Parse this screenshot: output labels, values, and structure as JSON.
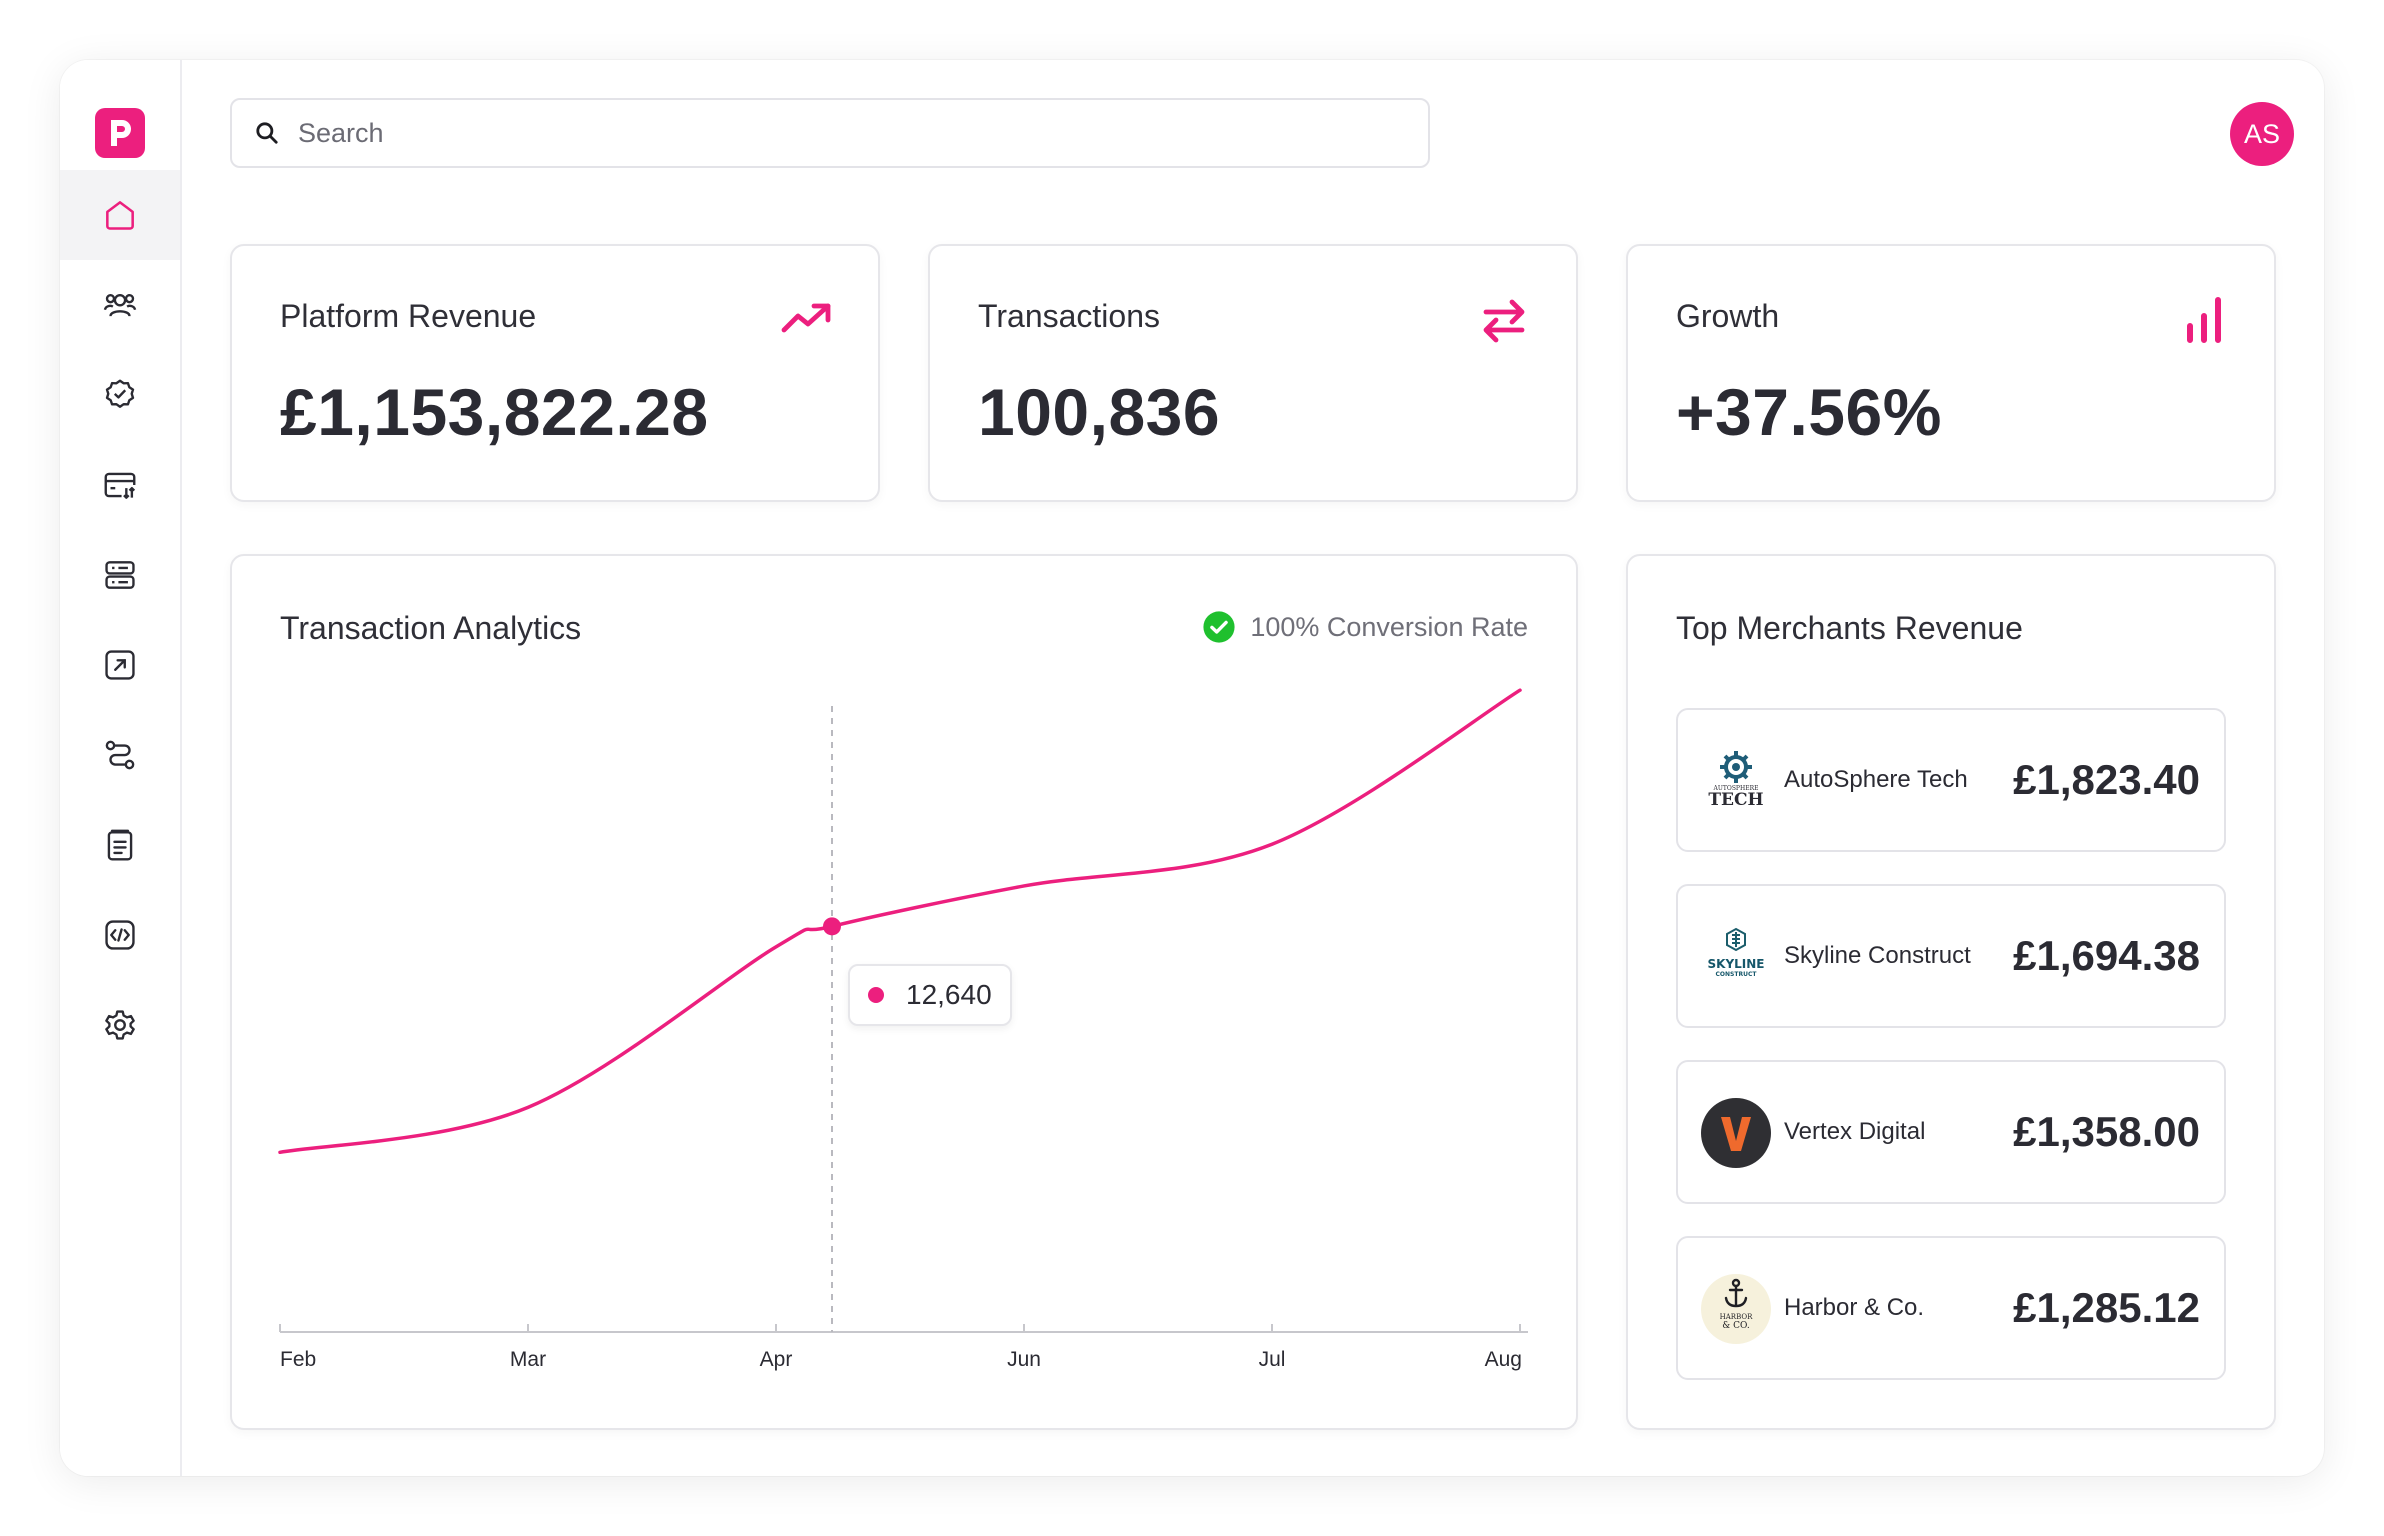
{
  "brand": {
    "logo_letter": "p",
    "accent": "#ec1f7e"
  },
  "sidebar": {
    "items": [
      {
        "icon": "home-icon",
        "active": true
      },
      {
        "icon": "users-icon",
        "active": false
      },
      {
        "icon": "verified-badge-icon",
        "active": false
      },
      {
        "icon": "card-transfer-icon",
        "active": false
      },
      {
        "icon": "server-icon",
        "active": false
      },
      {
        "icon": "arrow-up-right-square-icon",
        "active": false
      },
      {
        "icon": "route-icon",
        "active": false
      },
      {
        "icon": "document-icon",
        "active": false
      },
      {
        "icon": "code-icon",
        "active": false
      },
      {
        "icon": "settings-gear-icon",
        "active": false
      }
    ]
  },
  "header": {
    "search_placeholder": "Search",
    "avatar_initials": "AS"
  },
  "stats": [
    {
      "title": "Platform Revenue",
      "value": "£1,153,822.28",
      "icon": "trending-up-icon"
    },
    {
      "title": "Transactions",
      "value": "100,836",
      "icon": "swap-arrows-icon"
    },
    {
      "title": "Growth",
      "value": "+37.56%",
      "icon": "bar-chart-icon"
    }
  ],
  "analytics": {
    "title": "Transaction Analytics",
    "conversion_label": "100% Conversion Rate",
    "tooltip_value": "12,640"
  },
  "merchants": {
    "title": "Top Merchants Revenue",
    "items": [
      {
        "name": "AutoSphere Tech",
        "revenue": "£1,823.40",
        "logo": "autosphere-logo",
        "logo_text_top": "AUTOSPHERE",
        "logo_text_bottom": "TECH"
      },
      {
        "name": "Skyline Construct",
        "revenue": "£1,694.38",
        "logo": "skyline-logo",
        "logo_text_top": "SKYLINE",
        "logo_text_bottom": "CONSTRUCT"
      },
      {
        "name": "Vertex Digital",
        "revenue": "£1,358.00",
        "logo": "vertex-logo",
        "logo_text_top": "V",
        "logo_text_bottom": ""
      },
      {
        "name": "Harbor & Co.",
        "revenue": "£1,285.12",
        "logo": "harbor-logo",
        "logo_text_top": "HARBOR",
        "logo_text_bottom": "& CO."
      }
    ]
  },
  "chart_data": {
    "type": "line",
    "x": [
      "Feb",
      "Mar",
      "Apr",
      "Jun",
      "Jul",
      "Aug"
    ],
    "xlabel": "",
    "ylabel": "",
    "series": [
      {
        "color": "#ec1f7e",
        "points": [
          {
            "x": "Feb",
            "y": 5600
          },
          {
            "x": "Mar",
            "y": 7000
          },
          {
            "x": "Apr",
            "y": 12000
          },
          {
            "x": "Apr-hover",
            "y": 12640
          },
          {
            "x": "Jun",
            "y": 13900
          },
          {
            "x": "Jul",
            "y": 15200
          },
          {
            "x": "Aug",
            "y": 20000
          }
        ]
      }
    ],
    "highlight": {
      "x": "Apr",
      "y": 12640,
      "label": "12,640"
    },
    "ylim": [
      0,
      22000
    ],
    "grid": false,
    "legend": "none"
  }
}
